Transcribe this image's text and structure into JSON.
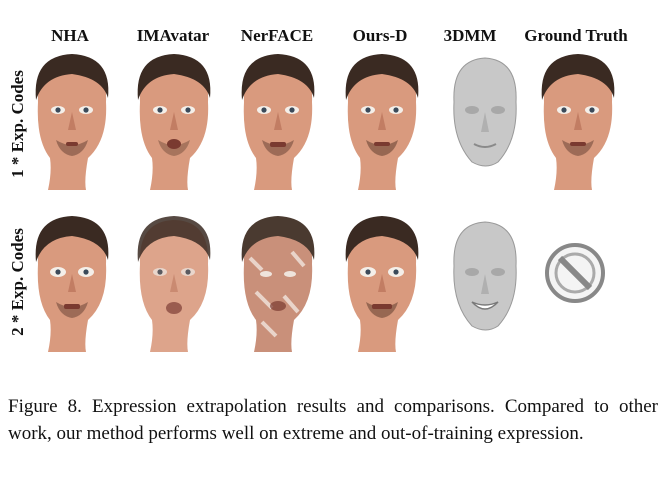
{
  "columns": [
    "NHA",
    "IMAvatar",
    "NerFACE",
    "Ours-D",
    "3DMM",
    "Ground Truth"
  ],
  "rows": [
    "1 * Exp. Codes",
    "2 * Exp. Codes"
  ],
  "caption": "Figure 8. Expression extrapolation results and comparisons. Compared to other work, our method performs well on extreme and out-of-training expression.",
  "colors": {
    "skin": "#d99a7e",
    "skin_shadow": "#b87058",
    "hair": "#3a2a22",
    "mesh": "#c8c8c8"
  }
}
